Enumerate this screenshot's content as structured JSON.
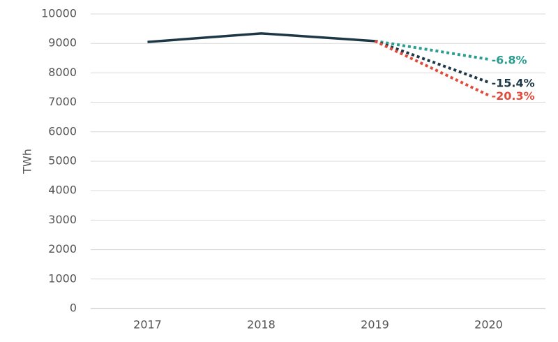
{
  "chart_data": {
    "type": "line",
    "y_label": "TWh",
    "categories": [
      "2017",
      "2018",
      "2019",
      "2020"
    ],
    "series": [
      {
        "color": "#1d3747",
        "style": "solid",
        "values": [
          9050,
          9340,
          9080,
          null
        ]
      },
      {
        "color": "#2a9d8f",
        "style": "dotted",
        "values": [
          null,
          null,
          9080,
          8460
        ],
        "end_label": "-6.8%"
      },
      {
        "color": "#1d3747",
        "style": "dotted",
        "values": [
          null,
          null,
          9080,
          7680
        ],
        "end_label": "-15.4%"
      },
      {
        "color": "#e04b3c",
        "style": "dotted",
        "values": [
          null,
          null,
          9080,
          7240
        ],
        "end_label": "-20.3%"
      }
    ],
    "ylim": [
      0,
      10000
    ],
    "yticks": [
      0,
      1000,
      2000,
      3000,
      4000,
      5000,
      6000,
      7000,
      8000,
      9000,
      10000
    ],
    "grid": true
  }
}
